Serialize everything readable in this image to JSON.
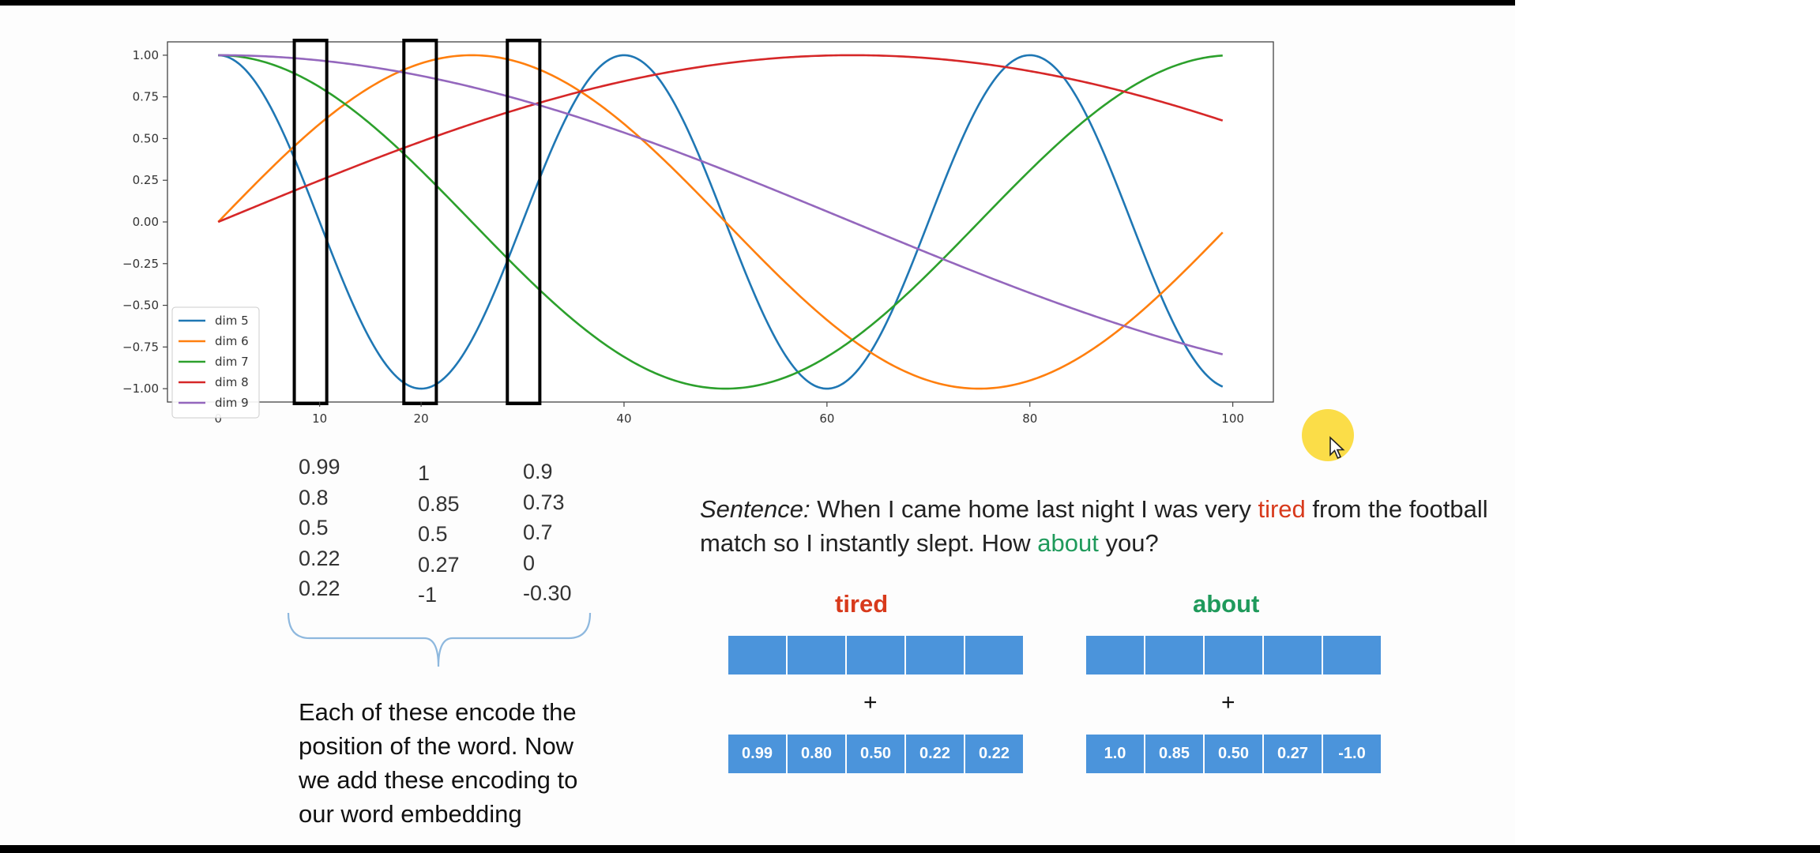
{
  "chart_data": {
    "type": "line",
    "x_range": [
      0,
      99
    ],
    "xlim": [
      -5,
      104
    ],
    "ylim": [
      -1.08,
      1.08
    ],
    "xticks": [
      0,
      10,
      20,
      40,
      60,
      80,
      100
    ],
    "yticks": [
      1.0,
      0.75,
      0.5,
      0.25,
      0.0,
      -0.25,
      -0.5,
      -0.75,
      -1.0
    ],
    "ytick_labels": [
      "1.00",
      "0.75",
      "0.50",
      "0.25",
      "0.00",
      "−0.25",
      "−0.50",
      "−0.75",
      "−1.00"
    ],
    "series": [
      {
        "name": "dim 5",
        "color": "#1f77b4",
        "func": "cos",
        "period": 40
      },
      {
        "name": "dim 6",
        "color": "#ff7f0e",
        "func": "sin",
        "period": 100
      },
      {
        "name": "dim 7",
        "color": "#2ca02c",
        "func": "cos",
        "period": 100
      },
      {
        "name": "dim 8",
        "color": "#d62728",
        "func": "sin",
        "period": 250
      },
      {
        "name": "dim 9",
        "color": "#9467bd",
        "func": "cos",
        "period": 250
      }
    ],
    "legend_position": "lower-left",
    "highlight_boxes": [
      {
        "x_from": 7.5,
        "x_to": 10.7
      },
      {
        "x_from": 18.3,
        "x_to": 21.5
      },
      {
        "x_from": 28.5,
        "x_to": 31.7
      }
    ]
  },
  "columns": [
    [
      "0.99",
      "0.8",
      "0.5",
      "0.22",
      "0.22"
    ],
    [
      "1",
      "0.85",
      "0.5",
      "0.27",
      "-1"
    ],
    [
      "0.9",
      "0.73",
      "0.7",
      "0",
      "-0.30"
    ]
  ],
  "caption": {
    "lines": [
      "Each of these encode the",
      "position of the word. Now",
      "we add these encoding to",
      "our word embedding"
    ]
  },
  "sentence": {
    "label": "Sentence:",
    "part1": " When I came home last night I was very ",
    "word1": "tired",
    "part2": " from the football match so I instantly slept. How ",
    "word2": "about",
    "part3": " you?"
  },
  "tired": {
    "title": "tired",
    "title_color": "#d83a1c",
    "plus": "+",
    "values": [
      "0.99",
      "0.80",
      "0.50",
      "0.22",
      "0.22"
    ]
  },
  "about": {
    "title": "about",
    "title_color": "#1f9a5b",
    "plus": "+",
    "values": [
      "1.0",
      "0.85",
      "0.50",
      "0.27",
      "-1.0"
    ]
  }
}
